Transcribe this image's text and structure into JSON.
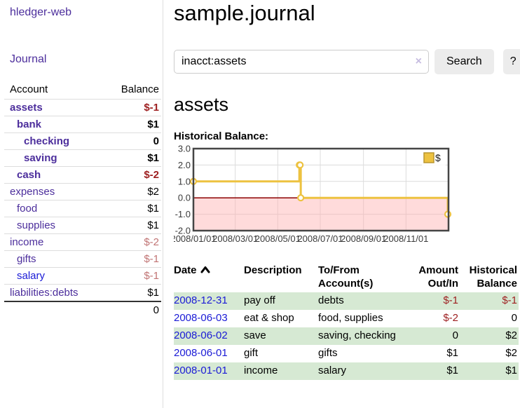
{
  "app": {
    "title": "hledger-web",
    "nav_journal": "Journal"
  },
  "colors": {
    "link_purple": "#4c2e9c",
    "link_blue": "#1a1ad6",
    "negative_strong": "#9d1e1f",
    "negative_muted": "#c17474",
    "row_green": "#d6e9d3",
    "button_gray": "#ececec"
  },
  "sidebar": {
    "account_header": "Account",
    "balance_header": "Balance",
    "accounts": [
      {
        "name": "assets",
        "level": 1,
        "bold": true,
        "balance": "$-1",
        "balance_style": "negative-strong"
      },
      {
        "name": "bank",
        "level": 2,
        "bold": true,
        "balance": "$1",
        "balance_style": "normal"
      },
      {
        "name": "checking",
        "level": 3,
        "bold": true,
        "balance": "0",
        "balance_style": "normal"
      },
      {
        "name": "saving",
        "level": 3,
        "bold": true,
        "balance": "$1",
        "balance_style": "normal"
      },
      {
        "name": "cash",
        "level": 2,
        "bold": true,
        "balance": "$-2",
        "balance_style": "negative-strong"
      },
      {
        "name": "expenses",
        "level": 1,
        "bold": false,
        "balance": "$2",
        "balance_style": "normal"
      },
      {
        "name": "food",
        "level": 2,
        "bold": false,
        "balance": "$1",
        "balance_style": "normal"
      },
      {
        "name": "supplies",
        "level": 2,
        "bold": false,
        "balance": "$1",
        "balance_style": "normal"
      },
      {
        "name": "income",
        "level": 1,
        "bold": false,
        "balance": "$-2",
        "balance_style": "negative-muted"
      },
      {
        "name": "gifts",
        "level": 2,
        "bold": false,
        "balance": "$-1",
        "balance_style": "negative-muted"
      },
      {
        "name": "salary",
        "level": 2,
        "bold": false,
        "balance": "$-1",
        "balance_style": "negative-muted",
        "link_style": "unvisited"
      },
      {
        "name": "liabilities:debts",
        "level": 1,
        "bold": false,
        "balance": "$1",
        "balance_style": "normal"
      }
    ],
    "total": "0"
  },
  "header": {
    "title": "sample.journal"
  },
  "search": {
    "value": "inacct:assets",
    "clear_icon": "×",
    "button_label": "Search",
    "help_label": "?"
  },
  "account_page": {
    "heading": "assets",
    "chart_label": "Historical Balance:"
  },
  "chart_data": {
    "type": "line",
    "title": "Historical Balance",
    "step": true,
    "series": [
      {
        "name": "$",
        "color": "#edc240",
        "points": [
          [
            "2008-01-01",
            1
          ],
          [
            "2008-06-01",
            2
          ],
          [
            "2008-06-02",
            2
          ],
          [
            "2008-06-03",
            0
          ],
          [
            "2008-12-31",
            -1
          ]
        ]
      }
    ],
    "x_range": [
      "2008-01-01",
      "2009-01-01"
    ],
    "x_ticks": [
      {
        "date": "2008-01-01",
        "label": "2008/01/01"
      },
      {
        "date": "2008-03-01",
        "label": "2008/03/01"
      },
      {
        "date": "2008-05-01",
        "label": "2008/05/01"
      },
      {
        "date": "2008-07-01",
        "label": "2008/07/01"
      },
      {
        "date": "2008-09-01",
        "label": "2008/09/01"
      },
      {
        "date": "2008-11-01",
        "label": "2008/11/01"
      }
    ],
    "y_ticks": [
      {
        "v": 3,
        "label": "3.0"
      },
      {
        "v": 2,
        "label": "2.0"
      },
      {
        "v": 1,
        "label": "1.0"
      },
      {
        "v": 0,
        "label": "0.0"
      },
      {
        "v": -1,
        "label": "-1.0"
      },
      {
        "v": -2,
        "label": "-2.0"
      }
    ],
    "ylim": [
      -2,
      3
    ],
    "grid": true,
    "legend": {
      "label": "$",
      "position": "top-right"
    },
    "colors": {
      "line": "#edc240",
      "point_fill": "#ffffff",
      "border": "#454545",
      "grid": "#dcdcdc",
      "negative_region": "#ffb0b0",
      "zero_line": "#8b0000",
      "legend_square_border": "#b89530"
    }
  },
  "register": {
    "columns": [
      "Date",
      "Description",
      "To/From Account(s)",
      "Amount Out/In",
      "Historical Balance"
    ],
    "sort": {
      "column": "Date",
      "direction": "ascending"
    },
    "rows": [
      {
        "date": "2008-12-31",
        "description": "pay off",
        "accounts": "debts",
        "amount": "$-1",
        "amount_negative": true,
        "balance": "$-1",
        "balance_negative": true
      },
      {
        "date": "2008-06-03",
        "description": "eat & shop",
        "accounts": "food, supplies",
        "amount": "$-2",
        "amount_negative": true,
        "balance": "0",
        "balance_negative": false
      },
      {
        "date": "2008-06-02",
        "description": "save",
        "accounts": "saving, checking",
        "amount": "0",
        "amount_negative": false,
        "balance": "$2",
        "balance_negative": false
      },
      {
        "date": "2008-06-01",
        "description": "gift",
        "accounts": "gifts",
        "amount": "$1",
        "amount_negative": false,
        "balance": "$2",
        "balance_negative": false
      },
      {
        "date": "2008-01-01",
        "description": "income",
        "accounts": "salary",
        "amount": "$1",
        "amount_negative": false,
        "balance": "$1",
        "balance_negative": false
      }
    ]
  }
}
